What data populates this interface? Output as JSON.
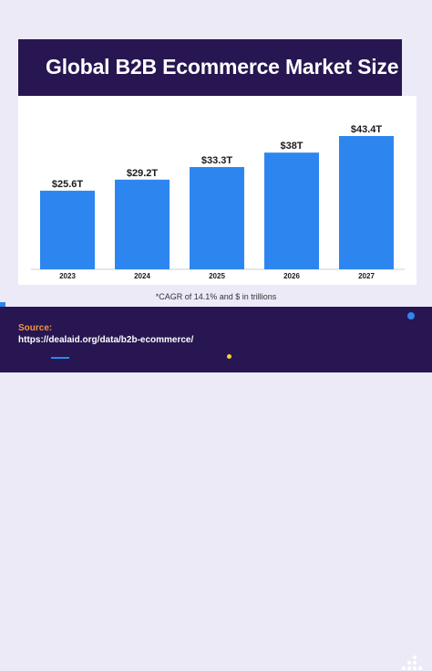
{
  "header": {
    "title": "Global B2B Ecommerce Market Size"
  },
  "chart_data": {
    "type": "bar",
    "title": "Global B2B Ecommerce Market Size",
    "categories": [
      "2023",
      "2024",
      "2025",
      "2026",
      "2027"
    ],
    "values": [
      25.6,
      29.2,
      33.3,
      38.0,
      43.4
    ],
    "value_labels": [
      "$25.6T",
      "$29.2T",
      "$33.3T",
      "$38T",
      "$43.4T"
    ],
    "xlabel": "",
    "ylabel": "",
    "ylim": [
      0,
      43.4
    ],
    "grid": false,
    "legend": "none",
    "bar_color": "#2d86ef"
  },
  "note": "*CAGR of 14.1% and $ in trillions",
  "footer": {
    "source_label": "Source:",
    "source_url": "https://dealaid.org/data/b2b-ecommerce/"
  },
  "colors": {
    "background": "#edeaf8",
    "dark_band": "#271651",
    "accent_blue": "#2d86ef",
    "accent_orange": "#f0973a",
    "accent_yellow": "#f5d33a"
  },
  "icons": [
    "brand-dots-icon"
  ]
}
